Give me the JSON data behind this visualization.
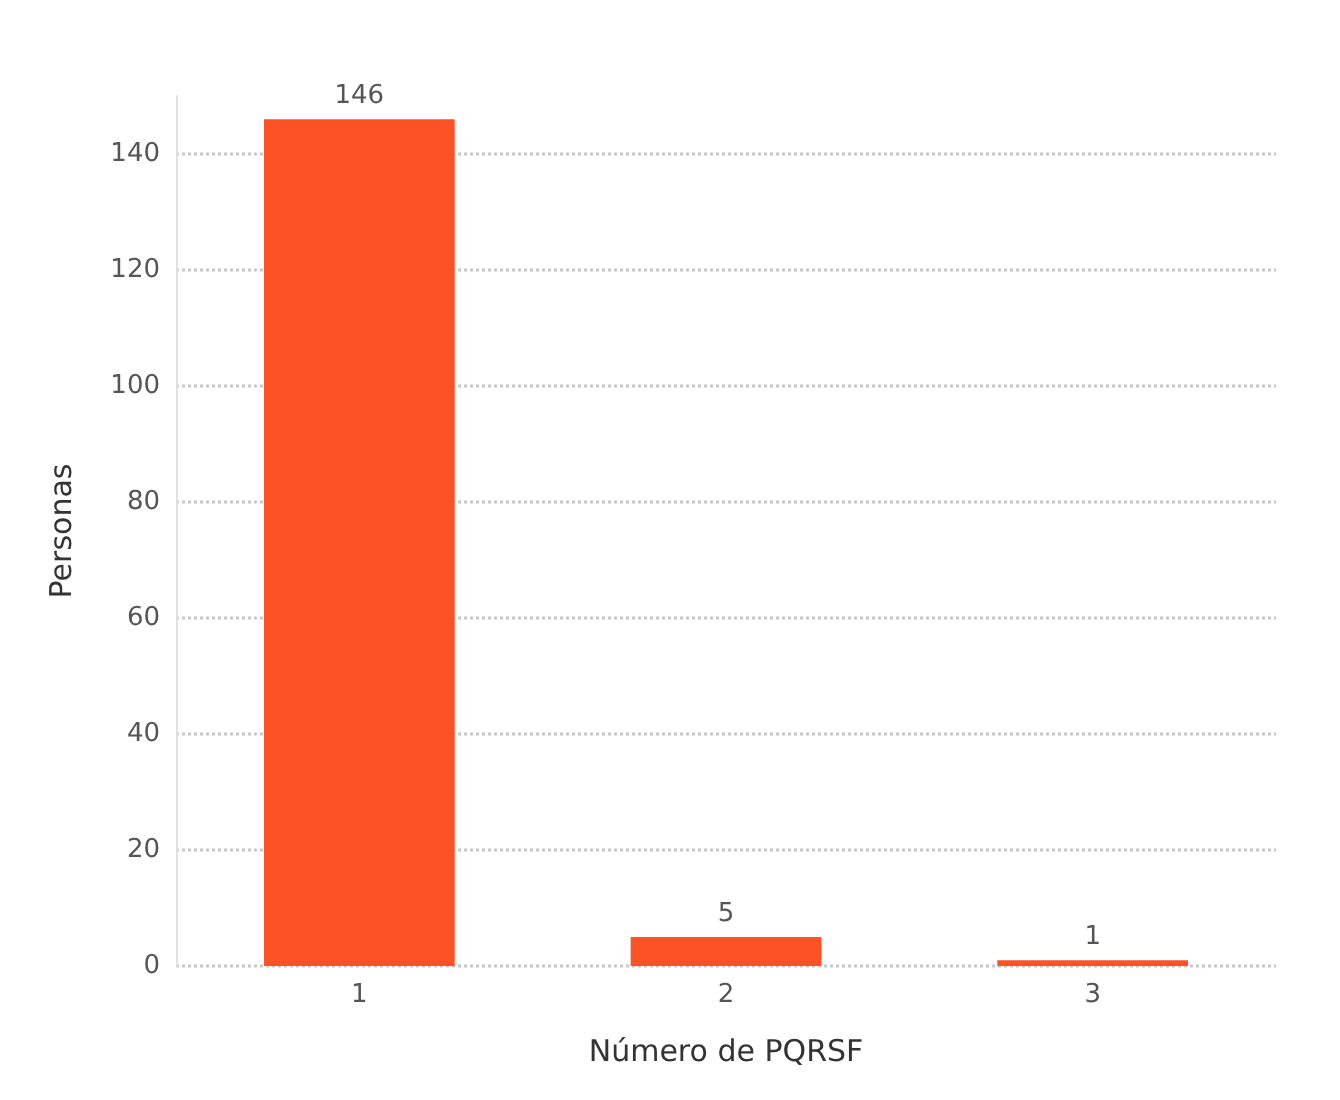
{
  "chart_data": {
    "type": "bar",
    "xlabel": "Número de PQRSF",
    "ylabel": "Personas",
    "categories": [
      "1",
      "2",
      "3"
    ],
    "values": [
      146,
      5,
      1
    ],
    "color": "#fd5126",
    "ylim": [
      0,
      150
    ],
    "yticks": [
      0,
      20,
      40,
      60,
      80,
      100,
      120,
      140
    ],
    "grid": "y",
    "data_labels": true
  }
}
